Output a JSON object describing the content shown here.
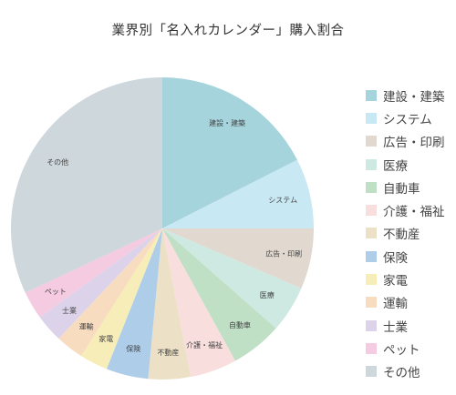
{
  "chart_data": {
    "type": "pie",
    "title": "業界別「名入れカレンダー」購入割合",
    "legend_position": "right",
    "start_angle_deg": 0,
    "direction": "clockwise",
    "slices": [
      {
        "label": "建設・建築",
        "value": 17.5,
        "color": "#a5d4dd"
      },
      {
        "label": "システム",
        "value": 7.5,
        "color": "#c8e8f3"
      },
      {
        "label": "広告・印刷",
        "value": 6.5,
        "color": "#e1d9cf"
      },
      {
        "label": "医療",
        "value": 5.0,
        "color": "#cde9e1"
      },
      {
        "label": "自動車",
        "value": 5.5,
        "color": "#bfe0c5"
      },
      {
        "label": "介護・福祉",
        "value": 5.0,
        "color": "#f9dede"
      },
      {
        "label": "不動産",
        "value": 4.5,
        "color": "#ece1c6"
      },
      {
        "label": "保険",
        "value": 4.5,
        "color": "#aecde8"
      },
      {
        "label": "家電",
        "value": 3.0,
        "color": "#f7edb8"
      },
      {
        "label": "運輸",
        "value": 3.0,
        "color": "#f8dcc0"
      },
      {
        "label": "士業",
        "value": 3.0,
        "color": "#dcd3ea"
      },
      {
        "label": "ペット",
        "value": 3.0,
        "color": "#f4cbe0"
      },
      {
        "label": "その他",
        "value": 32.0,
        "color": "#cdd7dc"
      }
    ]
  }
}
